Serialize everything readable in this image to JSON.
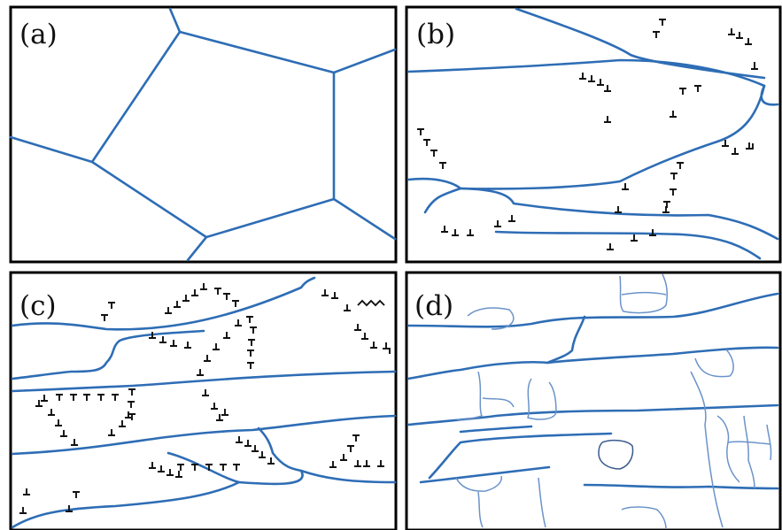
{
  "panels": [
    {
      "id": "a",
      "label": "(a)"
    },
    {
      "id": "b",
      "label": "(b)"
    },
    {
      "id": "c",
      "label": "(c)"
    },
    {
      "id": "d",
      "label": "(d)"
    }
  ],
  "colors": {
    "grain_boundary": "#2e6db5",
    "subgrain_boundary": "#6b93c9",
    "dislocation": "#111111",
    "frame": "#000000"
  },
  "icons": {
    "dislocation_symbol": "perpendicular-symbol"
  }
}
